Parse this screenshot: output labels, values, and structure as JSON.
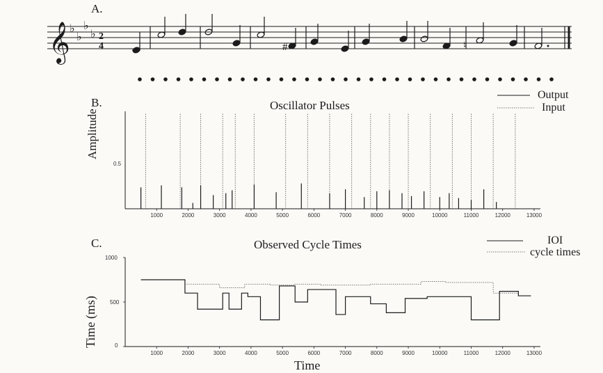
{
  "panel_a": {
    "label": "A."
  },
  "panel_b": {
    "label": "B.",
    "title": "Oscillator Pulses",
    "ylabel": "Amplitude",
    "legend": [
      "Output",
      "Input"
    ],
    "ytick_mid": "0.5"
  },
  "panel_c": {
    "label": "C.",
    "title": "Observed Cycle Times",
    "ylabel": "Time (ms)",
    "xlabel": "Time",
    "legend": [
      "IOI",
      "cycle times"
    ],
    "yticks": [
      "1000",
      "500",
      "0"
    ]
  },
  "colors": {
    "ink": "#1b1b1b",
    "dotted": "#777777"
  },
  "chart_data": [
    {
      "type": "bar",
      "title": "Oscillator Pulses",
      "ylabel": "Amplitude",
      "x_ticks": [
        "1000",
        "2000",
        "3000",
        "4000",
        "5000",
        "6000",
        "7000",
        "8000",
        "9000",
        "10000",
        "11000",
        "12000",
        "13000"
      ],
      "xlim": [
        0,
        13200
      ],
      "ylim": [
        0,
        1
      ],
      "series": [
        {
          "name": "Output",
          "x": [
            500,
            1150,
            1800,
            2150,
            2400,
            2800,
            3200,
            3400,
            4100,
            4800,
            5600,
            6500,
            7000,
            7600,
            8000,
            8400,
            8800,
            9100,
            9500,
            10000,
            10300,
            10600,
            11000,
            11400,
            11800
          ],
          "values": [
            0.22,
            0.24,
            0.22,
            0.06,
            0.24,
            0.14,
            0.16,
            0.19,
            0.25,
            0.17,
            0.26,
            0.16,
            0.2,
            0.12,
            0.18,
            0.19,
            0.16,
            0.13,
            0.18,
            0.12,
            0.16,
            0.11,
            0.09,
            0.2,
            0.07
          ]
        },
        {
          "name": "Input",
          "x": [
            650,
            1750,
            2400,
            3100,
            3500,
            4100,
            5100,
            5800,
            6500,
            7200,
            7800,
            8400,
            9000,
            9700,
            10400,
            11000,
            11700,
            12400
          ],
          "values": [
            0.98,
            0.98,
            0.98,
            0.98,
            0.98,
            0.98,
            0.98,
            0.98,
            0.98,
            0.98,
            0.98,
            0.98,
            0.98,
            0.98,
            0.98,
            0.98,
            0.98,
            0.98
          ]
        }
      ]
    },
    {
      "type": "line",
      "title": "Observed Cycle Times",
      "ylabel": "Time (ms)",
      "xlabel": "Time",
      "x_ticks": [
        "1000",
        "2000",
        "3000",
        "4000",
        "5000",
        "6000",
        "7000",
        "8000",
        "9000",
        "10000",
        "11000",
        "12000",
        "13000"
      ],
      "xlim": [
        0,
        13200
      ],
      "ylim": [
        0,
        1000
      ],
      "series": [
        {
          "name": "IOI",
          "x": [
            500,
            1900,
            2300,
            3100,
            3300,
            3700,
            3900,
            4300,
            4900,
            5400,
            5800,
            6700,
            7000,
            7800,
            8300,
            8900,
            9600,
            10400,
            11000,
            11900,
            12500
          ],
          "values": [
            750,
            600,
            420,
            600,
            420,
            600,
            560,
            300,
            680,
            500,
            640,
            360,
            560,
            480,
            380,
            540,
            560,
            560,
            300,
            620,
            570
          ]
        },
        {
          "name": "cycle times",
          "x": [
            500,
            1900,
            3000,
            3800,
            4600,
            5400,
            6200,
            7000,
            7800,
            8600,
            9400,
            10200,
            11000,
            11700,
            12500
          ],
          "values": [
            750,
            700,
            660,
            700,
            690,
            700,
            690,
            690,
            700,
            700,
            730,
            720,
            720,
            600,
            570
          ]
        }
      ]
    }
  ]
}
